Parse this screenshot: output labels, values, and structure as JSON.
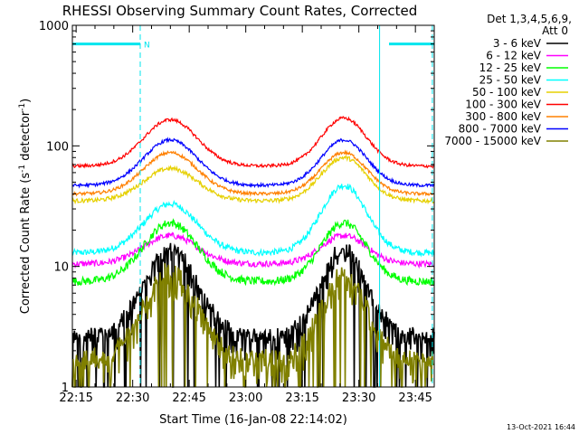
{
  "chart_data": {
    "type": "line",
    "title": "RHESSI Observing Summary Count Rates, Corrected",
    "xlabel": "Start Time (16-Jan-08 22:14:02)",
    "ylabel_main": "Corrected Count Rate (s",
    "ylabel_sup1": "-1",
    "ylabel_mid": " detector",
    "ylabel_sup2": "-1",
    "ylabel_end": ")",
    "yscale": "log",
    "ylim": [
      1,
      1000
    ],
    "xlim_minutes": [
      0,
      96
    ],
    "x_unit": "minutes",
    "grid": false,
    "legend_position": "right",
    "legend_header": [
      "Det 1,3,4,5,6,9,",
      "Att 0"
    ],
    "footer_date": "13-Oct-2021 16:44",
    "x_ticks": [
      {
        "label": "22:15",
        "t": 1
      },
      {
        "label": "22:30",
        "t": 16
      },
      {
        "label": "22:45",
        "t": 31
      },
      {
        "label": "23:00",
        "t": 46
      },
      {
        "label": "23:15",
        "t": 61
      },
      {
        "label": "23:30",
        "t": 76
      },
      {
        "label": "23:45",
        "t": 91
      }
    ],
    "y_ticks": [
      {
        "label": "1",
        "v": 1
      },
      {
        "label": "10",
        "v": 10
      },
      {
        "label": "100",
        "v": 100
      },
      {
        "label": "1000",
        "v": 1000
      }
    ],
    "flag_bars": [
      {
        "t0": 0,
        "t1": 18,
        "y": 700,
        "color": "#00e5ee",
        "label": "N"
      },
      {
        "t0": 84,
        "t1": 96,
        "y": 700,
        "color": "#00e5ee",
        "label": ""
      }
    ],
    "boundary_lines": [
      {
        "t": 0,
        "style": "solid",
        "color": "#00e5ee"
      },
      {
        "t": 18,
        "style": "dashed",
        "color": "#00e5ee"
      },
      {
        "t": 81.5,
        "style": "solid",
        "color": "#00e5ee"
      },
      {
        "t": 95.5,
        "style": "dashed",
        "color": "#00e5ee"
      }
    ],
    "series": [
      {
        "name": "3 - 6 keV",
        "color": "#000000",
        "base": 2.7,
        "peak1": 14,
        "peak2": 14,
        "noise": 0.12,
        "quantized": true
      },
      {
        "name": "6 - 12 keV",
        "color": "#ff00ff",
        "base": 10.5,
        "peak1": 18,
        "peak2": 18,
        "noise": 0.06
      },
      {
        "name": "12 - 25 keV",
        "color": "#00ff00",
        "base": 7.5,
        "peak1": 23,
        "peak2": 23,
        "noise": 0.08
      },
      {
        "name": "25 - 50 keV",
        "color": "#00ffff",
        "base": 13,
        "peak1": 33,
        "peak2": 47,
        "noise": 0.06
      },
      {
        "name": "50 - 100 keV",
        "color": "#e6d000",
        "base": 35,
        "peak1": 65,
        "peak2": 80,
        "noise": 0.04
      },
      {
        "name": "100 - 300 keV",
        "color": "#ff0000",
        "base": 68,
        "peak1": 165,
        "peak2": 170,
        "noise": 0.03
      },
      {
        "name": "300 - 800 keV",
        "color": "#ff8000",
        "base": 40,
        "peak1": 88,
        "peak2": 88,
        "noise": 0.03
      },
      {
        "name": "800 - 7000 keV",
        "color": "#0000ff",
        "base": 47,
        "peak1": 112,
        "peak2": 112,
        "noise": 0.03
      },
      {
        "name": "7000 - 15000 keV",
        "color": "#808000",
        "base": 1.7,
        "peak1": 9,
        "peak2": 9,
        "noise": 0.16,
        "quantized": true
      }
    ],
    "peak_centers_minutes": [
      26,
      72
    ],
    "peak_width_minutes": 10
  }
}
